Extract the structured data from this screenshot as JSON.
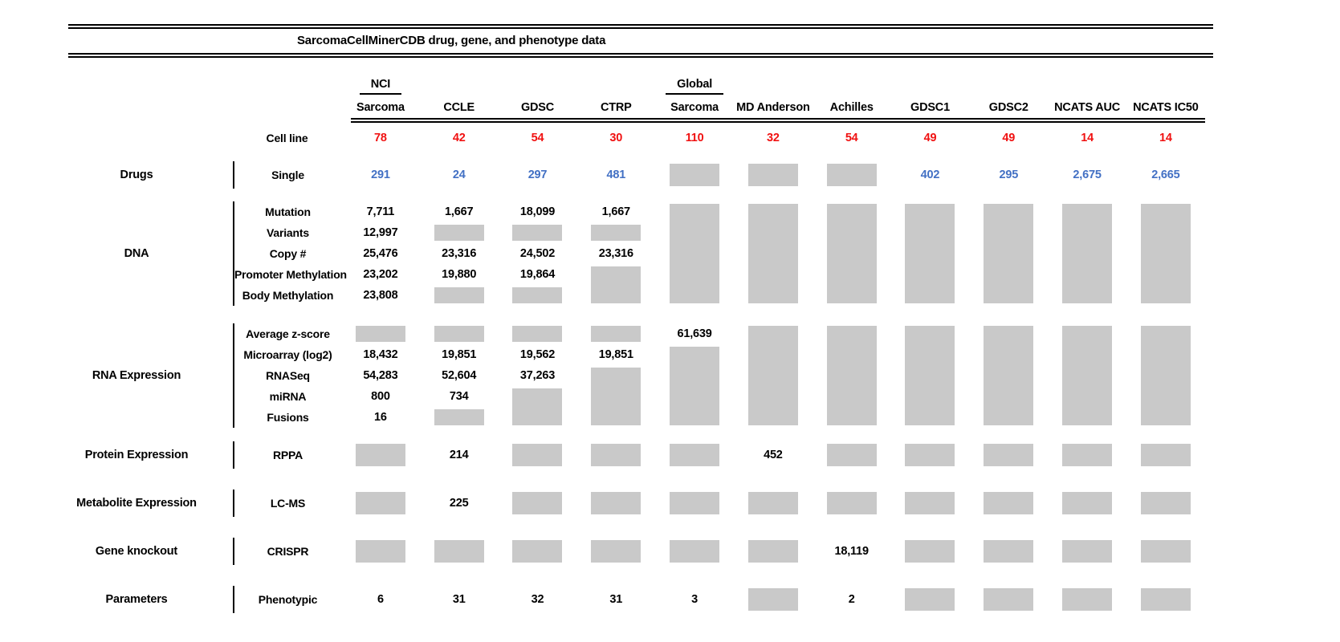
{
  "chart_data": {
    "type": "table",
    "title": "SarcomaCellMinerCDB drug, gene, and phenotype data",
    "palette": {
      "red": "#F01111",
      "blue": "#4270C4",
      "gray_box": "#C9C9C9",
      "line": "#000000"
    },
    "columns": [
      {
        "id": "nci-sarcoma",
        "top": "NCI",
        "label": "Sarcoma"
      },
      {
        "id": "ccle",
        "label": "CCLE"
      },
      {
        "id": "gdsc",
        "label": "GDSC"
      },
      {
        "id": "ctrp",
        "label": "CTRP"
      },
      {
        "id": "global-sarcoma",
        "top": "Global",
        "label": "Sarcoma"
      },
      {
        "id": "md-anderson",
        "label": "MD Anderson"
      },
      {
        "id": "achilles",
        "label": "Achilles"
      },
      {
        "id": "gdsc1",
        "label": "GDSC1"
      },
      {
        "id": "gdsc2",
        "label": "GDSC2"
      },
      {
        "id": "ncats-auc",
        "label": "NCATS AUC"
      },
      {
        "id": "ncats-ic50",
        "label": "NCATS IC50"
      }
    ],
    "cell_line_row": {
      "label": "Cell line",
      "color": "#F01111",
      "values": [
        "78",
        "42",
        "54",
        "30",
        "110",
        "32",
        "54",
        "49",
        "49",
        "14",
        "14"
      ]
    },
    "sections": [
      {
        "group": "Drugs",
        "rows": [
          "Single"
        ],
        "value_color": "#4270C4",
        "cells": [
          [
            {
              "t": "291"
            }
          ],
          [
            {
              "t": "24"
            }
          ],
          [
            {
              "t": "297"
            }
          ],
          [
            {
              "t": "481"
            }
          ],
          [
            {
              "g": 1
            }
          ],
          [
            {
              "g": 1
            }
          ],
          [
            {
              "g": 1
            }
          ],
          [
            {
              "t": "402"
            }
          ],
          [
            {
              "t": "295"
            }
          ],
          [
            {
              "t": "2,675"
            }
          ],
          [
            {
              "t": "2,665"
            }
          ]
        ]
      },
      {
        "group": "DNA",
        "rows": [
          "Mutation",
          "Variants",
          "Copy #",
          "Promoter Methylation",
          "Body Methylation"
        ],
        "cells": [
          [
            {
              "t": "7,711"
            },
            {
              "t": "12,997"
            },
            {
              "t": "25,476"
            },
            {
              "t": "23,202"
            },
            {
              "t": "23,808"
            }
          ],
          [
            {
              "t": "1,667"
            },
            {
              "g": 1
            },
            {
              "t": "23,316"
            },
            {
              "t": "19,880"
            },
            {
              "g": 1
            }
          ],
          [
            {
              "t": "18,099"
            },
            {
              "g": 1
            },
            {
              "t": "24,502"
            },
            {
              "t": "19,864"
            },
            {
              "g": 1
            }
          ],
          [
            {
              "t": "1,667"
            },
            {
              "g": 1
            },
            {
              "t": "23,316"
            },
            {
              "g": 2
            }
          ],
          [
            {
              "g": 5
            }
          ],
          [
            {
              "g": 5
            }
          ],
          [
            {
              "g": 5
            }
          ],
          [
            {
              "g": 5
            }
          ],
          [
            {
              "g": 5
            }
          ],
          [
            {
              "g": 5
            }
          ],
          [
            {
              "g": 5
            }
          ]
        ]
      },
      {
        "group": "RNA Expression",
        "rows": [
          "Average z-score",
          "Microarray (log2)",
          "RNASeq",
          "miRNA",
          "Fusions"
        ],
        "cells": [
          [
            {
              "g": 1
            },
            {
              "t": "18,432"
            },
            {
              "t": "54,283"
            },
            {
              "t": "800"
            },
            {
              "t": "16"
            }
          ],
          [
            {
              "g": 1
            },
            {
              "t": "19,851"
            },
            {
              "t": "52,604"
            },
            {
              "t": "734"
            },
            {
              "g": 1
            }
          ],
          [
            {
              "g": 1
            },
            {
              "t": "19,562"
            },
            {
              "t": "37,263"
            },
            {
              "g": 2
            }
          ],
          [
            {
              "g": 1
            },
            {
              "t": "19,851"
            },
            {
              "g": 3
            }
          ],
          [
            {
              "t": "61,639"
            },
            {
              "g": 4
            }
          ],
          [
            {
              "g": 5
            }
          ],
          [
            {
              "g": 5
            }
          ],
          [
            {
              "g": 5
            }
          ],
          [
            {
              "g": 5
            }
          ],
          [
            {
              "g": 5
            }
          ],
          [
            {
              "g": 5
            }
          ]
        ]
      },
      {
        "group": "Protein Expression",
        "rows": [
          "RPPA"
        ],
        "cells": [
          [
            {
              "g": 1
            }
          ],
          [
            {
              "t": "214"
            }
          ],
          [
            {
              "g": 1
            }
          ],
          [
            {
              "g": 1
            }
          ],
          [
            {
              "g": 1
            }
          ],
          [
            {
              "t": "452"
            }
          ],
          [
            {
              "g": 1
            }
          ],
          [
            {
              "g": 1
            }
          ],
          [
            {
              "g": 1
            }
          ],
          [
            {
              "g": 1
            }
          ],
          [
            {
              "g": 1
            }
          ]
        ]
      },
      {
        "group": "Metabolite Expression",
        "rows": [
          "LC-MS"
        ],
        "cells": [
          [
            {
              "g": 1
            }
          ],
          [
            {
              "t": "225"
            }
          ],
          [
            {
              "g": 1
            }
          ],
          [
            {
              "g": 1
            }
          ],
          [
            {
              "g": 1
            }
          ],
          [
            {
              "g": 1
            }
          ],
          [
            {
              "g": 1
            }
          ],
          [
            {
              "g": 1
            }
          ],
          [
            {
              "g": 1
            }
          ],
          [
            {
              "g": 1
            }
          ],
          [
            {
              "g": 1
            }
          ]
        ]
      },
      {
        "group": "Gene knockout",
        "rows": [
          "CRISPR"
        ],
        "cells": [
          [
            {
              "g": 1
            }
          ],
          [
            {
              "g": 1
            }
          ],
          [
            {
              "g": 1
            }
          ],
          [
            {
              "g": 1
            }
          ],
          [
            {
              "g": 1
            }
          ],
          [
            {
              "g": 1
            }
          ],
          [
            {
              "t": "18,119"
            }
          ],
          [
            {
              "g": 1
            }
          ],
          [
            {
              "g": 1
            }
          ],
          [
            {
              "g": 1
            }
          ],
          [
            {
              "g": 1
            }
          ]
        ]
      },
      {
        "group": "Parameters",
        "rows": [
          "Phenotypic"
        ],
        "cells": [
          [
            {
              "t": "6"
            }
          ],
          [
            {
              "t": "31"
            }
          ],
          [
            {
              "t": "32"
            }
          ],
          [
            {
              "t": "31"
            }
          ],
          [
            {
              "t": "3"
            }
          ],
          [
            {
              "g": 1
            }
          ],
          [
            {
              "t": "2"
            }
          ],
          [
            {
              "g": 1
            }
          ],
          [
            {
              "g": 1
            }
          ],
          [
            {
              "g": 1
            }
          ],
          [
            {
              "g": 1
            }
          ]
        ]
      }
    ]
  }
}
